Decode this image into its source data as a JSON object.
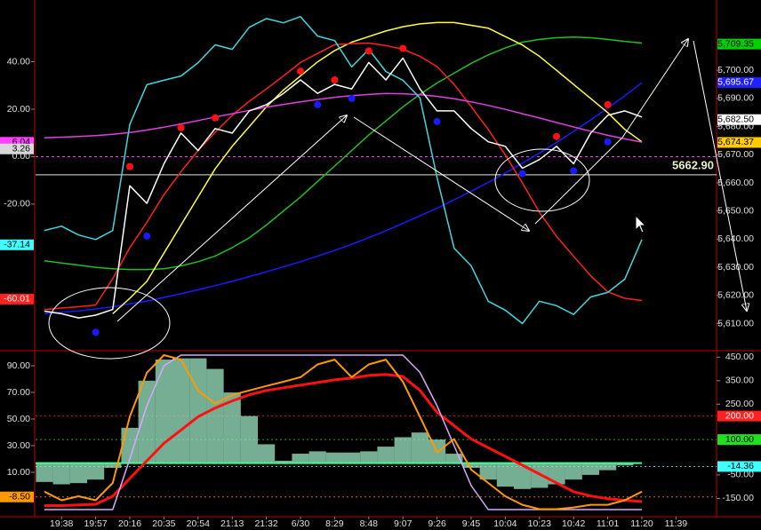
{
  "chart_data": [
    {
      "type": "line",
      "y_axis_side": "right",
      "ylim": [
        5601,
        5725
      ],
      "yticks": [
        {
          "value": 5700,
          "label": "5,700.00"
        },
        {
          "value": 5690,
          "label": "5,690.00"
        },
        {
          "value": 5680,
          "label": "5,680.00"
        },
        {
          "value": 5670,
          "label": "5,670.00"
        },
        {
          "value": 5660,
          "label": "5,660.00"
        },
        {
          "value": 5650,
          "label": "5,650.00"
        },
        {
          "value": 5640,
          "label": "5,640.00"
        },
        {
          "value": 5630,
          "label": "5,630.00"
        },
        {
          "value": 5620,
          "label": "5,620.00"
        },
        {
          "value": 5610,
          "label": "5,610.00"
        }
      ],
      "y2lim": [
        -81,
        66
      ],
      "y2ticks": [
        {
          "value": 40,
          "label": "40.00"
        },
        {
          "value": 20,
          "label": "20.00"
        },
        {
          "value": 0,
          "label": "0.00"
        },
        {
          "value": -20,
          "label": "-20.00"
        }
      ],
      "y_badges": [
        {
          "value": 5709.35,
          "label": "5,709.35",
          "color": "#00d000"
        },
        {
          "value": 5695.67,
          "label": "5,695.67",
          "color": "#2020ff"
        },
        {
          "value": 5682.5,
          "label": "5,682.50",
          "color": "#ffffff"
        },
        {
          "value": 5674.37,
          "label": "5,674.37",
          "color": "#ffcc00"
        }
      ],
      "y2_badges": [
        {
          "value": 6.04,
          "label": "6.04",
          "color": "#ff40ff"
        },
        {
          "value": 3.26,
          "label": "3.26",
          "color": "#d8d8d8"
        },
        {
          "value": -37.14,
          "label": "-37.14",
          "color": "#40ffff"
        },
        {
          "value": -60.01,
          "label": "-60.01",
          "color": "#ff2020"
        }
      ],
      "hline": {
        "value": 5662.9,
        "label": "5662.90"
      },
      "series": [
        {
          "color": "#1a1aff",
          "values": [
            5613.5,
            5614,
            5614.5,
            5615.2,
            5616,
            5617,
            5618,
            5619.3,
            5620.6,
            5622,
            5623.5,
            5625,
            5626.7,
            5628.4,
            5630.2,
            5632,
            5634,
            5636,
            5638.2,
            5640.5,
            5643,
            5645.6,
            5648.3,
            5651,
            5654,
            5657,
            5660.2,
            5663.5,
            5667,
            5670.6,
            5674.4,
            5678.3,
            5682.4,
            5686.6,
            5691,
            5695.6,
            null,
            null
          ]
        },
        {
          "color": "#20c020",
          "values": [
            5632.3,
            5631.5,
            5630.8,
            5630,
            5629.5,
            5629.2,
            5629.2,
            5629.5,
            5630.5,
            5632,
            5634,
            5637,
            5640.5,
            5645,
            5650,
            5655,
            5660.5,
            5666,
            5671.5,
            5677,
            5682,
            5687,
            5691.5,
            5695.5,
            5699,
            5702.5,
            5705.5,
            5708,
            5710,
            5711,
            5711.6,
            5711.8,
            5711.6,
            5711,
            5710.3,
            5709.7,
            null,
            null
          ]
        },
        {
          "color": "#ffff40",
          "values": [
            null,
            null,
            null,
            null,
            5613.5,
            5619,
            5625,
            5635,
            5645,
            5655,
            5665,
            5673,
            5680,
            5687,
            5693,
            5698,
            5703,
            5707,
            5710,
            5712,
            5714,
            5715.5,
            5716.5,
            5717,
            5717,
            5716,
            5715,
            5712,
            5709,
            5705,
            5700,
            5695,
            5690,
            5685,
            5679,
            5674.6,
            null,
            null
          ]
        },
        {
          "color": "#ff2020",
          "values": [
            5615,
            5615.5,
            5616,
            5616.6,
            5626,
            5637,
            5646,
            5655.8,
            5664,
            5671.5,
            5678,
            5684,
            5689,
            5693.4,
            5698,
            5702.8,
            5706,
            5709.1,
            5709.5,
            5709.7,
            5708.8,
            5707.5,
            5705,
            5701.3,
            5695,
            5687.1,
            5679,
            5669.9,
            5660,
            5649.5,
            5641,
            5633.9,
            5627,
            5621.3,
            5619,
            5618.2,
            null,
            null
          ]
        },
        {
          "color": "#e040e0",
          "axis": "y2",
          "values": [
            8,
            8.2,
            8.5,
            8.9,
            9.4,
            10.2,
            11.2,
            12.4,
            13.8,
            15.2,
            16.7,
            18.1,
            19.5,
            20.8,
            22,
            23.1,
            24.1,
            25,
            25.7,
            26.2,
            26.6,
            26.5,
            26.1,
            25.4,
            24.4,
            23.1,
            21.6,
            19.9,
            18.1,
            16.3,
            14.4,
            12.5,
            10.7,
            9,
            7.5,
            6.1,
            null,
            null
          ]
        },
        {
          "color": "#40d8e0",
          "axis": "y2",
          "values": [
            -31.1,
            -29.3,
            -33,
            -34.9,
            -31.1,
            13.6,
            30.3,
            32.2,
            34,
            39.6,
            47.1,
            45.2,
            54.5,
            58.2,
            56.4,
            59,
            50.8,
            48.9,
            37.8,
            45.2,
            35.9,
            32.2,
            24.7,
            -8.8,
            -38.6,
            -46,
            -60.9,
            -64.7,
            -70.3,
            -60.9,
            -62.8,
            -66.5,
            -59.1,
            -57.2,
            -51.6,
            -34.9,
            null,
            null
          ]
        },
        {
          "color": "#ffffff",
          "values": [
            5614.4,
            5613.5,
            5612,
            5613,
            5615,
            5659,
            5652.7,
            5666.8,
            5677.7,
            5671.5,
            5679.3,
            5677.7,
            5685.6,
            5687.8,
            5691.8,
            5696.6,
            5691.8,
            5695,
            5693.4,
            5702.8,
            5696.6,
            5704.4,
            5693.4,
            5685.6,
            5685.6,
            5679.3,
            5674.6,
            5673,
            5665.2,
            5668.3,
            5673,
            5666.8,
            5677.7,
            5684,
            5685.6,
            5683.4,
            null,
            null
          ]
        },
        {
          "type": "dot",
          "color": "#ff1010",
          "values": [
            null,
            null,
            null,
            null,
            null,
            5665.8,
            null,
            null,
            5679.6,
            null,
            5683.1,
            null,
            null,
            null,
            null,
            5699.7,
            null,
            5696.6,
            null,
            5706.9,
            null,
            5707.8,
            null,
            null,
            null,
            null,
            null,
            null,
            null,
            null,
            5676.5,
            null,
            null,
            5687.8,
            null,
            null,
            null,
            null
          ]
        },
        {
          "type": "dot",
          "color": "#1a1aff",
          "values": [
            null,
            null,
            null,
            5606.9,
            null,
            null,
            5641.1,
            null,
            null,
            null,
            null,
            null,
            null,
            null,
            null,
            null,
            5687.8,
            null,
            5690,
            null,
            null,
            null,
            null,
            5681.8,
            null,
            null,
            null,
            null,
            5663.3,
            null,
            null,
            5664.3,
            null,
            5674.6,
            null,
            null,
            null,
            null
          ]
        }
      ]
    },
    {
      "type": "line",
      "y_axis_side": "left",
      "categories": [
        null,
        "19:38",
        null,
        "19:57",
        null,
        "20:16",
        null,
        "20:35",
        null,
        "20:54",
        null,
        "21:13",
        null,
        "21:32",
        null,
        "6/30",
        null,
        "8:29",
        null,
        "8:48",
        null,
        "9:07",
        null,
        "9:26",
        null,
        "9:45",
        null,
        "10:04",
        null,
        "10:23",
        null,
        "10:42",
        null,
        "11:01",
        null,
        "11:20",
        null,
        "11:39"
      ],
      "ylim": [
        -22,
        100
      ],
      "yticks": [
        {
          "value": 90,
          "label": "90.00"
        },
        {
          "value": 70,
          "label": "70.00"
        },
        {
          "value": 50,
          "label": "50.00"
        },
        {
          "value": 30,
          "label": "30.00"
        },
        {
          "value": 10,
          "label": "10.00"
        }
      ],
      "y2lim": [
        -220,
        470
      ],
      "y2ticks": [
        {
          "value": 450,
          "label": "450.00"
        },
        {
          "value": 350,
          "label": "350.00"
        },
        {
          "value": 250,
          "label": "250.00"
        },
        {
          "value": -50,
          "label": "-50.00"
        },
        {
          "value": -150,
          "label": "-150.00"
        }
      ],
      "y_badges": [
        {
          "value": -8.5,
          "label": "-8.50",
          "color": "#ff9900"
        }
      ],
      "y2_badges": [
        {
          "value": 200,
          "label": "200.00",
          "color": "#ff2020"
        },
        {
          "value": 100,
          "label": "100.00",
          "color": "#20e020"
        },
        {
          "value": -14.36,
          "label": "-14.36",
          "color": "#40ffff"
        }
      ],
      "badge_lines": true,
      "series": [
        {
          "type": "bar",
          "axis": "y2",
          "color": "#9ee8c4",
          "values": [
            -80,
            -90,
            -85,
            -70,
            -20,
            150,
            350,
            440,
            445,
            445,
            400,
            300,
            200,
            80,
            10,
            40,
            50,
            45,
            45,
            50,
            70,
            110,
            130,
            100,
            40,
            -20,
            -70,
            -100,
            -110,
            -105,
            -90,
            -70,
            -50,
            -30,
            -10,
            0,
            null,
            null
          ]
        },
        {
          "color": "#ff1010",
          "width": 3,
          "values": [
            -15,
            -15,
            -14.5,
            -14,
            -8,
            5.4,
            18.6,
            31.8,
            41.7,
            51.7,
            58.3,
            63.6,
            68.2,
            71.5,
            73.5,
            75.5,
            77.4,
            79.4,
            80.7,
            82.7,
            83.4,
            82,
            71.5,
            55,
            45,
            35.1,
            28.5,
            21.9,
            15.3,
            8.7,
            2.1,
            -4.5,
            -7.8,
            -9.8,
            -11,
            -12,
            null,
            null
          ]
        },
        {
          "color": "#d8a8ff",
          "values": [
            -18,
            -18,
            -18,
            -18,
            -18,
            20,
            60,
            90,
            98,
            98,
            98,
            98,
            98,
            98,
            98,
            98,
            98,
            98,
            98,
            98,
            98,
            98,
            85,
            60,
            30,
            0,
            -18,
            -18,
            -18,
            -18,
            -18,
            -18,
            -18,
            -18,
            -18,
            -18,
            null,
            null
          ]
        },
        {
          "color": "#ff9900",
          "width": 2,
          "values": [
            -4.5,
            -11,
            -8,
            -11,
            2,
            51.7,
            84.7,
            98,
            94.6,
            71.5,
            61.6,
            68,
            71.5,
            74.8,
            78,
            81.4,
            91,
            94.6,
            81.4,
            91,
            94.6,
            78,
            51.7,
            25,
            35,
            12,
            2,
            -8,
            -14.4,
            -17.7,
            -17.7,
            -16.4,
            -14.4,
            -14.4,
            -11,
            -4.5,
            null,
            null
          ]
        }
      ]
    }
  ]
}
